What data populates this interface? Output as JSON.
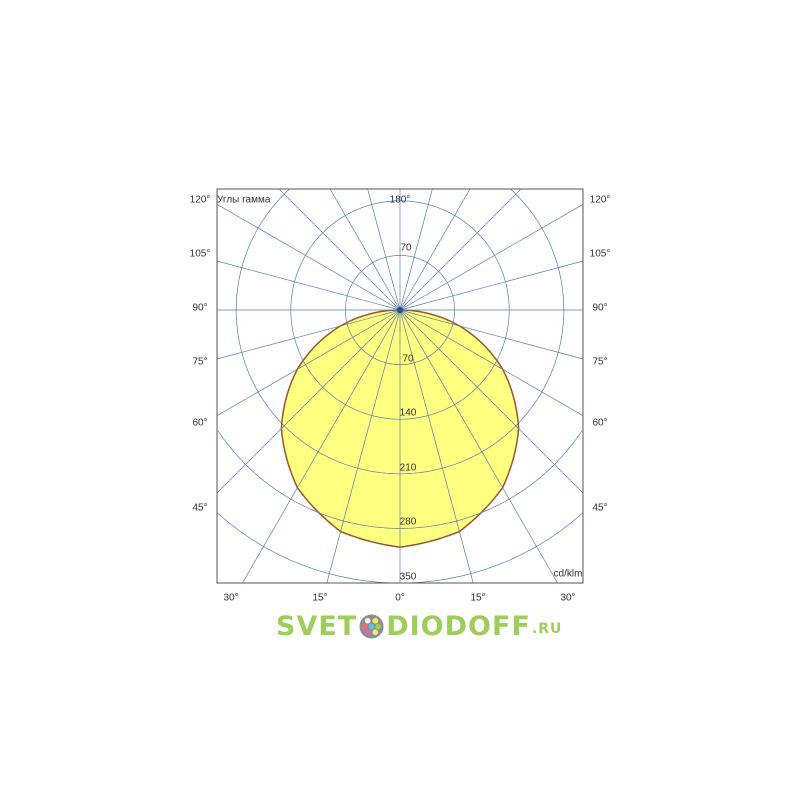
{
  "chart_data": {
    "type": "polar",
    "title": "Углы гамма",
    "unit_label": "cd/klm",
    "radial_ticks": [
      70,
      140,
      210,
      280,
      350
    ],
    "radial_max": 350,
    "spoke_step_deg": 15,
    "grid": true,
    "angle_labels_left": [
      "120°",
      "105°",
      "90°",
      "75°",
      "60°",
      "45°"
    ],
    "angle_labels_right": [
      "120°",
      "105°",
      "90°",
      "75°",
      "60°",
      "45°"
    ],
    "angle_labels_bottom": [
      "30°",
      "15°",
      "0°",
      "15°",
      "30°"
    ],
    "angle_label_top": "180°",
    "series": [
      {
        "gamma_deg": [
          0,
          15,
          30,
          45,
          60,
          75,
          90,
          105,
          120,
          135,
          150,
          165,
          180
        ],
        "intensity": [
          304,
          294,
          263,
          215,
          152,
          79,
          0,
          0,
          0,
          0,
          0,
          0,
          0
        ]
      }
    ],
    "colors": {
      "fill": "#ffff80",
      "outline": "#a0522d",
      "grid": "#5a7bb0",
      "frame": "#555555"
    }
  },
  "watermark": {
    "left": "SVET",
    "right": "DIODOFF",
    "suffix": ".RU",
    "color": "#8cc63e"
  }
}
